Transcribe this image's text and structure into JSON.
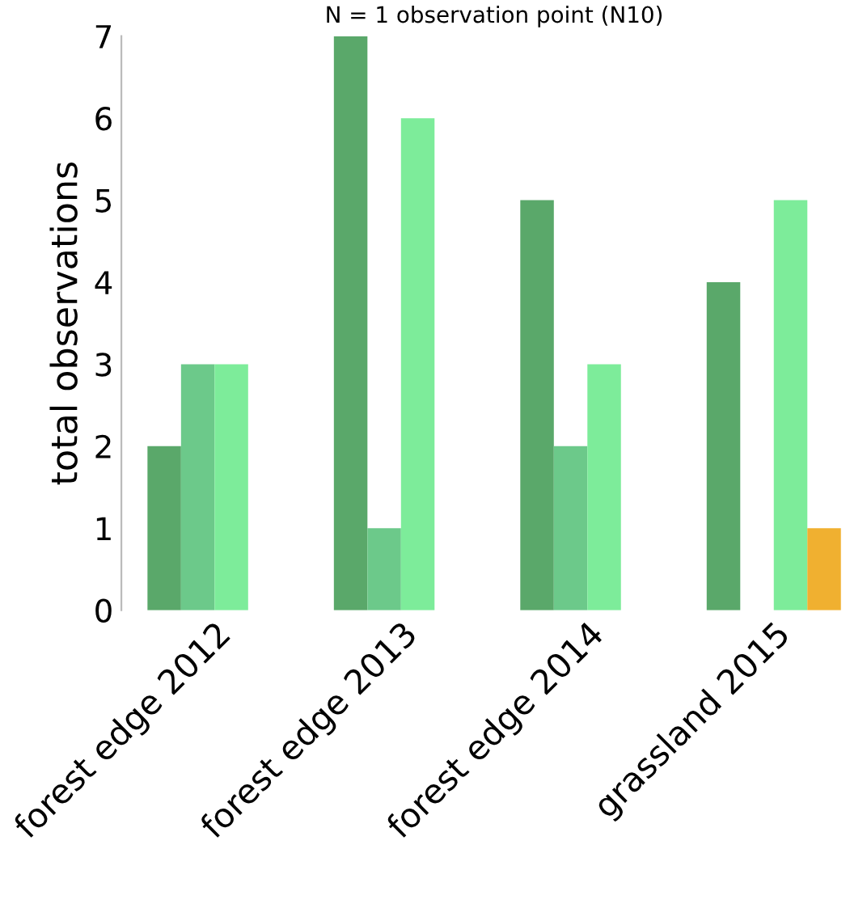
{
  "chart_data": {
    "type": "bar",
    "title": "N = 1 observation point (N10)",
    "ylabel": "total observations",
    "categories": [
      "forest edge 2012",
      "forest edge 2013",
      "forest edge 2014",
      "grassland 2015"
    ],
    "series": [
      {
        "color": "#5aa86a",
        "values": [
          2,
          7,
          5,
          4
        ]
      },
      {
        "color": "#6cc98a",
        "values": [
          3,
          1,
          2,
          0
        ]
      },
      {
        "color": "#7dec9a",
        "values": [
          3,
          6,
          3,
          5
        ]
      },
      {
        "color": "#f0b030",
        "values": [
          0,
          0,
          0,
          1
        ]
      }
    ],
    "ylim": [
      0,
      7
    ],
    "yticks": [
      0,
      1,
      2,
      3,
      4,
      5,
      6,
      7
    ],
    "grid": false
  }
}
